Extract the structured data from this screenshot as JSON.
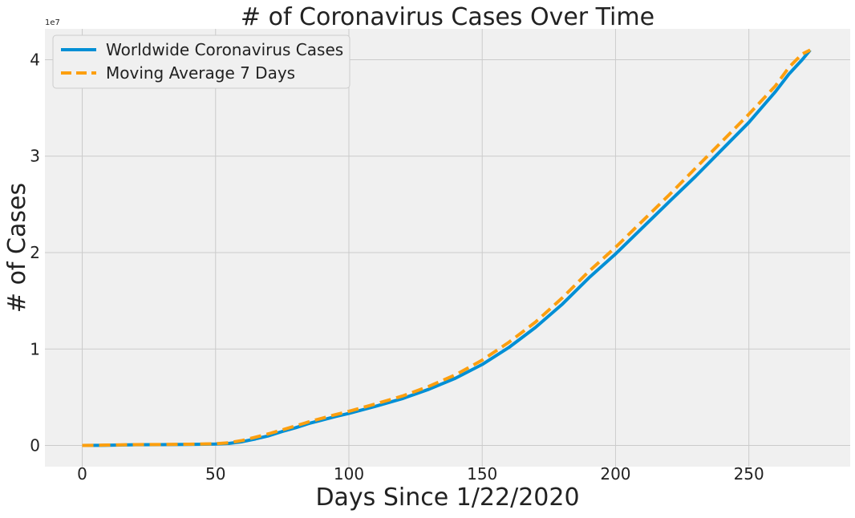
{
  "chart_data": {
    "type": "line",
    "title": "# of Coronavirus Cases Over Time",
    "xlabel": "Days Since 1/22/2020",
    "ylabel": "# of Cases",
    "y_offset_text": "1e7",
    "xlim": [
      -14,
      288
    ],
    "ylim": [
      -2200000,
      43200000
    ],
    "xticks": [
      0,
      50,
      100,
      150,
      200,
      250
    ],
    "xtick_labels": [
      "0",
      "50",
      "100",
      "150",
      "200",
      "250"
    ],
    "yticks": [
      0,
      10000000,
      20000000,
      30000000,
      40000000
    ],
    "ytick_labels": [
      "0",
      "1",
      "2",
      "3",
      "4"
    ],
    "grid": true,
    "legend_position": "upper-left",
    "background_color": "#f0f0f0",
    "grid_color": "#cbcbcb",
    "series": [
      {
        "name": "Worldwide Coronavirus Cases",
        "color": "#008fd5",
        "style": "solid",
        "x": [
          0,
          10,
          20,
          30,
          40,
          50,
          55,
          60,
          65,
          70,
          75,
          80,
          85,
          90,
          95,
          100,
          110,
          120,
          130,
          140,
          150,
          160,
          170,
          180,
          190,
          200,
          210,
          220,
          230,
          240,
          250,
          260,
          265,
          270,
          273
        ],
        "y": [
          0,
          20000,
          80000,
          90000,
          110000,
          150000,
          210000,
          390000,
          680000,
          1010000,
          1450000,
          1840000,
          2280000,
          2640000,
          3000000,
          3320000,
          4060000,
          4850000,
          5830000,
          6980000,
          8400000,
          10160000,
          12250000,
          14640000,
          17380000,
          19860000,
          22550000,
          25240000,
          27900000,
          30700000,
          33500000,
          36700000,
          38500000,
          40000000,
          41000000
        ]
      },
      {
        "name": "Moving Average 7 Days",
        "color": "#fc9f0f",
        "style": "dashed",
        "x": [
          0,
          10,
          20,
          30,
          40,
          50,
          55,
          60,
          65,
          70,
          75,
          80,
          85,
          90,
          95,
          100,
          110,
          120,
          130,
          140,
          150,
          160,
          170,
          180,
          190,
          200,
          210,
          220,
          230,
          240,
          250,
          260,
          265,
          270,
          273
        ],
        "y": [
          0,
          40000,
          90000,
          100000,
          130000,
          180000,
          280000,
          520000,
          860000,
          1220000,
          1620000,
          2030000,
          2450000,
          2830000,
          3200000,
          3540000,
          4310000,
          5120000,
          6130000,
          7330000,
          8850000,
          10700000,
          12800000,
          15300000,
          18050000,
          20550000,
          23250000,
          25950000,
          28750000,
          31550000,
          34350000,
          37300000,
          39200000,
          40600000,
          41000000
        ]
      }
    ]
  }
}
